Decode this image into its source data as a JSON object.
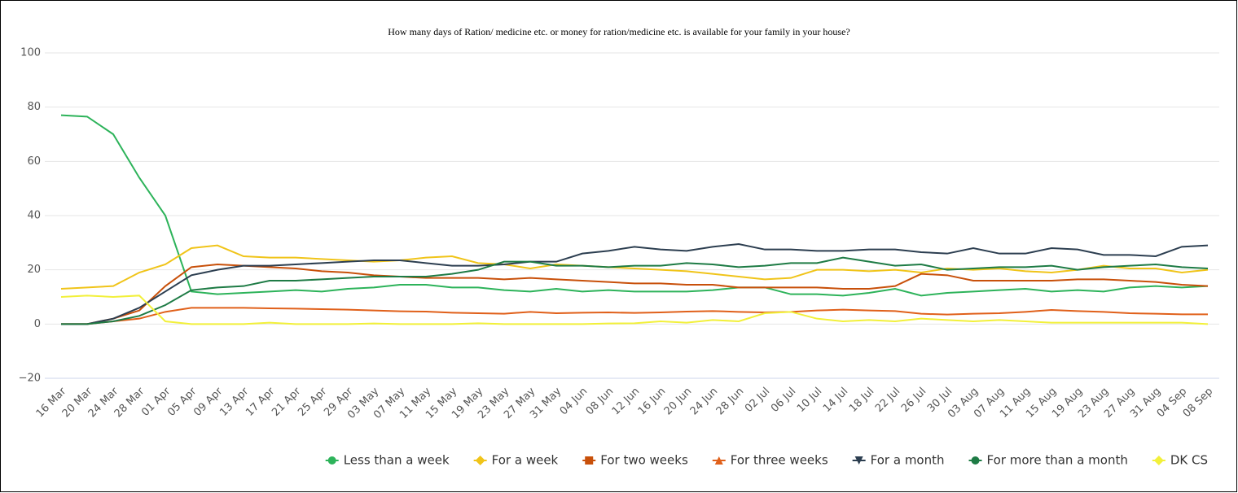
{
  "chart_data": {
    "type": "line",
    "title": "How many days of Ration/ medicine etc. or money for ration/medicine etc. is available for your family in your house?",
    "categories": [
      "16 Mar",
      "20 Mar",
      "24 Mar",
      "28 Mar",
      "01 Apr",
      "05 Apr",
      "09 Apr",
      "13 Apr",
      "17 Apr",
      "21 Apr",
      "25 Apr",
      "29 Apr",
      "03 May",
      "07 May",
      "11 May",
      "15 May",
      "19 May",
      "23 May",
      "27 May",
      "31 May",
      "04 Jun",
      "08 Jun",
      "12 Jun",
      "16 Jun",
      "20 Jun",
      "24 Jun",
      "28 Jun",
      "02 Jul",
      "06 Jul",
      "10 Jul",
      "14 Jul",
      "18 Jul",
      "22 Jul",
      "26 Jul",
      "30 Jul",
      "03 Aug",
      "07 Aug",
      "11 Aug",
      "15 Aug",
      "19 Aug",
      "23 Aug",
      "27 Aug",
      "31 Aug",
      "04 Sep",
      "08 Sep"
    ],
    "series": [
      {
        "name": "Less than a week",
        "color": "#2db35a",
        "symbol": "circle",
        "values": [
          77,
          76.5,
          70,
          54,
          40,
          12,
          11,
          11.5,
          12,
          12.5,
          12,
          13,
          13.5,
          14.5,
          14.5,
          13.5,
          13.5,
          12.5,
          12,
          13,
          12,
          12.5,
          12,
          12,
          12,
          12.5,
          13.5,
          13.5,
          11,
          11,
          10.5,
          11.5,
          13,
          10.5,
          11.5,
          12,
          12.5,
          13,
          12,
          12.5,
          12,
          13.5,
          14,
          13.5,
          14
        ]
      },
      {
        "name": "For a week",
        "color": "#f0c419",
        "symbol": "diamond",
        "values": [
          13,
          13.5,
          14,
          19,
          22,
          28,
          29,
          25,
          24.5,
          24.5,
          24,
          23.5,
          23,
          23.5,
          24.5,
          25,
          22.5,
          22,
          20.5,
          22,
          21.5,
          21,
          20.5,
          20,
          19.5,
          18.5,
          17.5,
          16.5,
          17,
          20,
          20,
          19.5,
          20,
          19,
          20.5,
          20,
          20.5,
          19.5,
          19,
          20,
          21.5,
          20.5,
          20.5,
          19,
          20
        ]
      },
      {
        "name": "For two weeks",
        "color": "#c8500a",
        "symbol": "square",
        "values": [
          0,
          0,
          2,
          5,
          14,
          21,
          22,
          21.5,
          21,
          20.5,
          19.5,
          19,
          18,
          17.5,
          17,
          17,
          17,
          16.5,
          17,
          16.5,
          16,
          15.5,
          15,
          15,
          14.5,
          14.5,
          13.5,
          13.5,
          13.5,
          13.5,
          13,
          13,
          14,
          18.5,
          18,
          16,
          16,
          16,
          16,
          16.5,
          16.5,
          16,
          15.5,
          14.5,
          14
        ]
      },
      {
        "name": "For three weeks",
        "color": "#e0601a",
        "symbol": "triangle",
        "values": [
          0,
          0,
          1,
          2,
          4.5,
          6,
          6,
          6,
          5.8,
          5.7,
          5.5,
          5.3,
          5,
          4.7,
          4.6,
          4.2,
          4,
          3.8,
          4.5,
          4,
          4.2,
          4.3,
          4.1,
          4.3,
          4.6,
          4.8,
          4.5,
          4.3,
          4.5,
          5,
          5.3,
          5,
          4.8,
          3.8,
          3.5,
          3.8,
          4,
          4.5,
          5.2,
          4.8,
          4.5,
          4,
          3.8,
          3.6,
          3.6
        ]
      },
      {
        "name": "For a month",
        "color": "#2c3e50",
        "symbol": "triangle-down",
        "values": [
          0,
          0,
          2,
          6,
          12,
          18,
          20,
          21.5,
          21.5,
          22,
          22.5,
          23,
          23.5,
          23.5,
          22.5,
          21.5,
          21.5,
          22,
          23,
          23,
          26,
          27,
          28.5,
          27.5,
          27,
          28.5,
          29.5,
          27.5,
          27.5,
          27,
          27,
          27.5,
          27.5,
          26.5,
          26,
          28,
          26,
          26,
          28,
          27.5,
          25.5,
          25.5,
          25,
          28.5,
          29
        ]
      },
      {
        "name": "For more than a month",
        "color": "#1e7b45",
        "symbol": "circle",
        "values": [
          0,
          0,
          1,
          3,
          7,
          12.5,
          13.5,
          14,
          16,
          16,
          16.5,
          17,
          17.5,
          17.5,
          17.5,
          18.5,
          20,
          23,
          23,
          21.5,
          21.5,
          21,
          21.5,
          21.5,
          22.5,
          22,
          21,
          21.5,
          22.5,
          22.5,
          24.5,
          23,
          21.5,
          22,
          20,
          20.5,
          21,
          21,
          21.5,
          20,
          21,
          21.5,
          22,
          21,
          20.5
        ]
      },
      {
        "name": "DK CS",
        "color": "#f2f03a",
        "symbol": "diamond",
        "values": [
          10,
          10.5,
          10,
          10.5,
          1,
          0,
          0,
          0,
          0.5,
          0,
          0,
          0,
          0.2,
          0,
          0,
          0,
          0.3,
          0,
          0,
          0,
          0,
          0.2,
          0.3,
          1,
          0.5,
          1.5,
          1,
          4,
          4.5,
          2,
          1,
          1.5,
          1,
          2,
          1.5,
          1,
          1.5,
          1,
          0.5,
          0.5,
          0.5,
          0.5,
          0.5,
          0.5,
          0
        ]
      }
    ],
    "ylim": [
      -20,
      100
    ],
    "yticks": [
      {
        "value": -20,
        "label": "−20"
      },
      0,
      20,
      40,
      60,
      80,
      100
    ],
    "grid": true,
    "legend": "bottom"
  }
}
